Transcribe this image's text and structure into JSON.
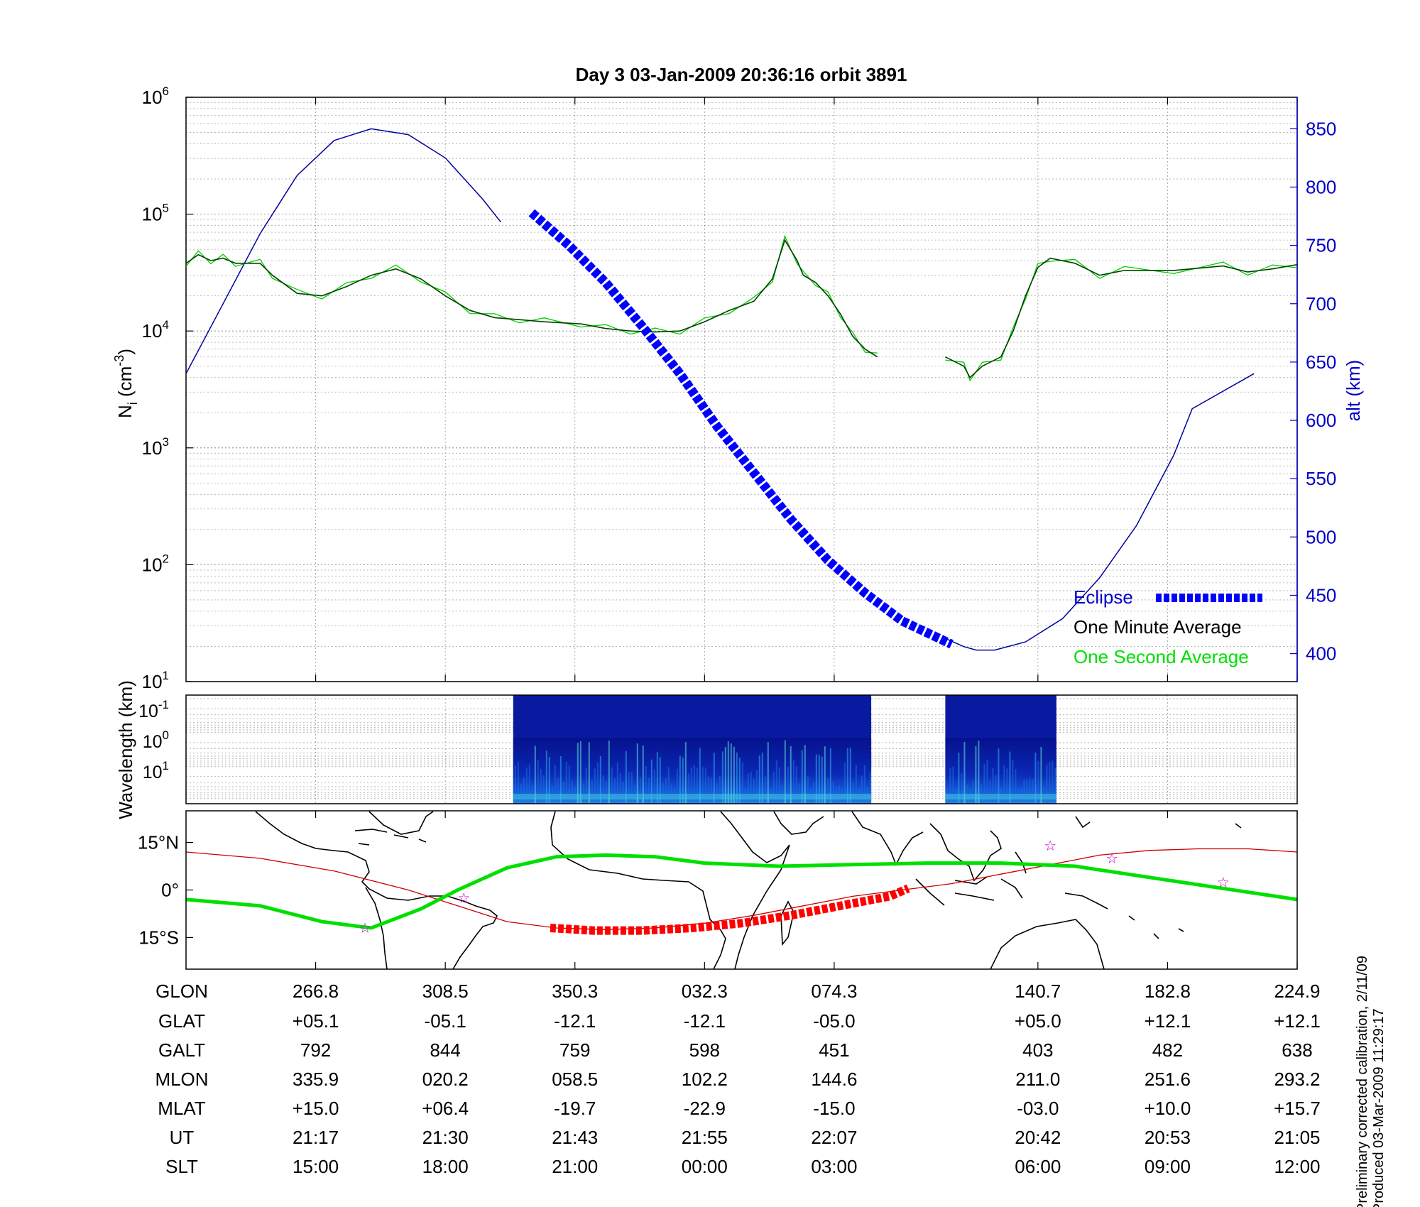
{
  "title": "Day 3  03-Jan-2009 20:36:16   orbit 3891",
  "colors": {
    "altitude": "#0000a0",
    "density_minute": "#004000",
    "density_second": "#00cc00",
    "eclipse": "#0000ff",
    "ground_track": "#cc0000",
    "eclipse_track": "#ff0000",
    "magnetic_equator": "#00e000",
    "stars": "#cc00cc",
    "spectrogram_bg": "#0a1aa0"
  },
  "chart_data": [
    {
      "type": "line",
      "name": "ion-density-panel",
      "ylabel_left": "N",
      "ylabel_left_sub": "i",
      "ylabel_left_unit": " (cm",
      "ylabel_left_sup": "-3",
      "ylabel_left_close": ")",
      "ylabel_right": "alt (km)",
      "y_scale_left": "log",
      "ylim_left": [
        10,
        1000000
      ],
      "left_ticks": [
        {
          "base": "10",
          "exp": "1",
          "value": 10
        },
        {
          "base": "10",
          "exp": "2",
          "value": 100
        },
        {
          "base": "10",
          "exp": "3",
          "value": 1000
        },
        {
          "base": "10",
          "exp": "4",
          "value": 10000
        },
        {
          "base": "10",
          "exp": "5",
          "value": 100000
        },
        {
          "base": "10",
          "exp": "6",
          "value": 1000000
        }
      ],
      "ylim_right": [
        376,
        877
      ],
      "right_ticks": [
        "400",
        "450",
        "500",
        "550",
        "600",
        "650",
        "700",
        "750",
        "800",
        "850"
      ],
      "grid": true,
      "legend_position": "bottom-right",
      "legend": [
        {
          "label": "Eclipse",
          "color": "#0000ff",
          "style": "thick-dotted"
        },
        {
          "label": "One Minute Average",
          "color": "#000000",
          "style": "line"
        },
        {
          "label": "One Second Average",
          "color": "#00cc00",
          "style": "line"
        }
      ],
      "altitude_segments": [
        [
          [
            0,
            640
          ],
          [
            3,
            700
          ],
          [
            6,
            760
          ],
          [
            9,
            810
          ],
          [
            12,
            840
          ],
          [
            15,
            850
          ],
          [
            18,
            845
          ],
          [
            21,
            825
          ],
          [
            24,
            790
          ],
          [
            25.5,
            770
          ]
        ],
        [
          [
            61.5,
            413
          ],
          [
            63,
            406
          ],
          [
            64,
            403
          ],
          [
            65.5,
            403
          ],
          [
            68,
            410
          ],
          [
            71,
            430
          ],
          [
            74,
            465
          ],
          [
            77,
            510
          ],
          [
            80,
            570
          ],
          [
            81.5,
            610
          ],
          [
            86.5,
            640
          ]
        ]
      ],
      "eclipse_segment": [
        [
          28,
          778
        ],
        [
          31,
          750
        ],
        [
          34,
          718
        ],
        [
          37,
          680
        ],
        [
          40,
          640
        ],
        [
          43,
          595
        ],
        [
          46,
          555
        ],
        [
          49,
          515
        ],
        [
          52,
          480
        ],
        [
          55,
          452
        ],
        [
          58,
          428
        ],
        [
          62,
          408
        ]
      ],
      "density_segments": [
        [
          [
            0,
            38000
          ],
          [
            1,
            45000
          ],
          [
            2,
            40000
          ],
          [
            3,
            42000
          ],
          [
            4,
            38000
          ],
          [
            6,
            38000
          ],
          [
            7,
            30000
          ],
          [
            9,
            21000
          ],
          [
            11,
            20000
          ],
          [
            13,
            24000
          ],
          [
            15,
            30000
          ],
          [
            17,
            34000
          ],
          [
            19,
            28000
          ],
          [
            21,
            20000
          ],
          [
            23,
            15000
          ],
          [
            25,
            13000
          ],
          [
            27,
            12500
          ],
          [
            29,
            12000
          ],
          [
            32,
            11500
          ],
          [
            34,
            10500
          ],
          [
            36,
            10000
          ],
          [
            38,
            9800
          ],
          [
            40,
            10000
          ],
          [
            42,
            12000
          ],
          [
            44,
            15000
          ],
          [
            46,
            18000
          ],
          [
            47.5,
            28000
          ],
          [
            48.5,
            60000
          ],
          [
            49.5,
            40000
          ],
          [
            50,
            30000
          ],
          [
            51,
            26000
          ],
          [
            52,
            20000
          ],
          [
            53,
            14000
          ],
          [
            54,
            9000
          ],
          [
            55,
            7000
          ],
          [
            56,
            6000
          ]
        ],
        [
          [
            61.5,
            6000
          ],
          [
            63,
            5000
          ],
          [
            63.5,
            4000
          ],
          [
            64.5,
            5000
          ],
          [
            66,
            6000
          ],
          [
            67,
            10000
          ],
          [
            68,
            20000
          ],
          [
            69,
            35000
          ],
          [
            70,
            42000
          ],
          [
            72,
            38000
          ],
          [
            74,
            30000
          ],
          [
            76,
            33000
          ],
          [
            80,
            33000
          ],
          [
            84,
            36000
          ],
          [
            86,
            32000
          ],
          [
            88,
            34000
          ],
          [
            90,
            37000
          ]
        ]
      ]
    },
    {
      "type": "heatmap",
      "name": "wavelength-spectrogram",
      "ylabel": "Wavelength (km)",
      "y_ticks": [
        {
          "base": "10",
          "exp": "-1"
        },
        {
          "base": "10",
          "exp": "0"
        },
        {
          "base": "10",
          "exp": "1"
        }
      ],
      "data_blocks": [
        [
          26.5,
          55.5
        ],
        [
          61.5,
          70.5
        ]
      ]
    },
    {
      "type": "map",
      "name": "ground-track-map",
      "lat_ticks": [
        {
          "value": 15,
          "label": "15°N"
        },
        {
          "value": 0,
          "label": "0°"
        },
        {
          "value": -15,
          "label": "15°S"
        }
      ],
      "ylim": [
        -25,
        25
      ],
      "ground_track": [
        [
          0,
          12
        ],
        [
          6,
          10
        ],
        [
          12,
          6
        ],
        [
          18,
          0
        ],
        [
          22,
          -5
        ],
        [
          26,
          -10
        ],
        [
          30,
          -12
        ],
        [
          34,
          -12.5
        ],
        [
          38,
          -12
        ],
        [
          42,
          -10.5
        ],
        [
          46,
          -8
        ],
        [
          50,
          -5
        ],
        [
          54,
          -2
        ],
        [
          58,
          0
        ],
        [
          62,
          2
        ],
        [
          66,
          5
        ],
        [
          70,
          8
        ],
        [
          74,
          11
        ],
        [
          78,
          12.5
        ],
        [
          82,
          13
        ],
        [
          86,
          13
        ],
        [
          90,
          12
        ]
      ],
      "eclipse_track": [
        [
          29.5,
          -12
        ],
        [
          33,
          -12.8
        ],
        [
          37,
          -12.8
        ],
        [
          41,
          -12
        ],
        [
          45,
          -10.5
        ],
        [
          49,
          -8
        ],
        [
          53,
          -5
        ],
        [
          57,
          -2
        ],
        [
          58.5,
          0.5
        ]
      ],
      "magnetic_equator": [
        [
          0,
          -3
        ],
        [
          6,
          -5
        ],
        [
          11,
          -10
        ],
        [
          15,
          -12
        ],
        [
          19,
          -6
        ],
        [
          22,
          0
        ],
        [
          26,
          7
        ],
        [
          30,
          10.5
        ],
        [
          34,
          11
        ],
        [
          38,
          10.5
        ],
        [
          42,
          8.5
        ],
        [
          48,
          7.5
        ],
        [
          54,
          8
        ],
        [
          60,
          8.5
        ],
        [
          66,
          8.5
        ],
        [
          72,
          7.5
        ],
        [
          78,
          4
        ],
        [
          84,
          0.5
        ],
        [
          90,
          -3
        ]
      ],
      "stars": [
        [
          14.5,
          -12
        ],
        [
          22.5,
          -2.5
        ],
        [
          70,
          14
        ],
        [
          75,
          10
        ],
        [
          84,
          2.5
        ]
      ]
    }
  ],
  "ticks_x": [
    10.5,
    21,
    31.5,
    42,
    52.5,
    69,
    79.5,
    90
  ],
  "table": {
    "row_labels": [
      "GLON",
      "GLAT",
      "GALT",
      "MLON",
      "MLAT",
      "UT",
      "SLT"
    ],
    "columns": [
      [
        "266.8",
        "+05.1",
        "792",
        "335.9",
        "+15.0",
        "21:17",
        "15:00"
      ],
      [
        "308.5",
        "-05.1",
        "844",
        "020.2",
        "+06.4",
        "21:30",
        "18:00"
      ],
      [
        "350.3",
        "-12.1",
        "759",
        "058.5",
        "-19.7",
        "21:43",
        "21:00"
      ],
      [
        "032.3",
        "-12.1",
        "598",
        "102.2",
        "-22.9",
        "21:55",
        "00:00"
      ],
      [
        "074.3",
        "-05.0",
        "451",
        "144.6",
        "-15.0",
        "22:07",
        "03:00"
      ],
      [
        "140.7",
        "+05.0",
        "403",
        "211.0",
        "-03.0",
        "20:42",
        "06:00"
      ],
      [
        "182.8",
        "+12.1",
        "482",
        "251.6",
        "+10.0",
        "20:53",
        "09:00"
      ],
      [
        "224.9",
        "+12.1",
        "638",
        "293.2",
        "+15.7",
        "21:05",
        "12:00"
      ]
    ]
  },
  "footer": {
    "line1": "Preliminary corrected calibration, 2/11/09",
    "line2": "Produced 03-Mar-2009 11:29:17"
  }
}
